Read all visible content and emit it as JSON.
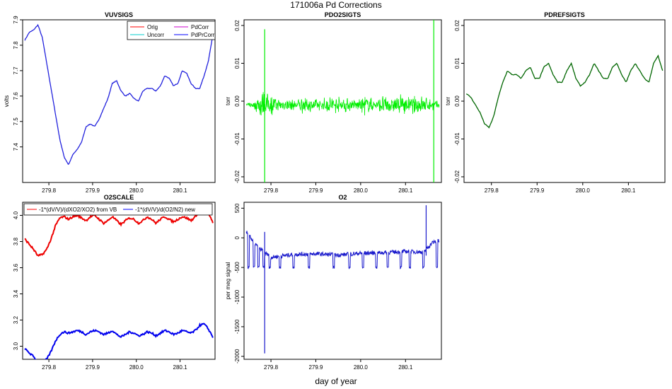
{
  "page": {
    "title": "171006a   Pd Corrections",
    "xlabel": "day of year"
  },
  "chart_data": [
    {
      "id": "vuvsigs",
      "type": "line",
      "title": "VUVSIGS",
      "ylabel": "volts",
      "xlim": [
        279.74,
        280.18
      ],
      "ylim": [
        7.26,
        7.9
      ],
      "xticks": [
        "279.8",
        "279.9",
        "280.0",
        "280.1"
      ],
      "xtick_values": [
        279.8,
        279.9,
        280.0,
        280.1
      ],
      "yticks": [
        "7.4",
        "7.5",
        "7.6",
        "7.7",
        "7.8",
        "7.9"
      ],
      "ytick_values": [
        7.4,
        7.5,
        7.6,
        7.7,
        7.8,
        7.9
      ],
      "legend": {
        "placement": "top-right",
        "entries": [
          {
            "name": "Orig",
            "color": "#ff0000"
          },
          {
            "name": "PdCorr",
            "color": "#cc00cc"
          },
          {
            "name": "Uncorr",
            "color": "#00cccc"
          },
          {
            "name": "PdPrCorr",
            "color": "#0000ff"
          }
        ]
      },
      "series": [
        {
          "name": "PdPrCorr",
          "color": "#2222dd",
          "x": [
            279.745,
            279.755,
            279.765,
            279.775,
            279.785,
            279.795,
            279.805,
            279.815,
            279.825,
            279.835,
            279.845,
            279.855,
            279.865,
            279.875,
            279.885,
            279.895,
            279.905,
            279.915,
            279.925,
            279.935,
            279.945,
            279.955,
            279.965,
            279.975,
            279.985,
            279.995,
            280.005,
            280.015,
            280.025,
            280.035,
            280.045,
            280.055,
            280.065,
            280.075,
            280.085,
            280.095,
            280.105,
            280.115,
            280.125,
            280.135,
            280.145,
            280.155,
            280.165,
            280.175
          ],
          "y": [
            7.82,
            7.85,
            7.86,
            7.88,
            7.83,
            7.73,
            7.63,
            7.53,
            7.43,
            7.36,
            7.33,
            7.37,
            7.39,
            7.42,
            7.48,
            7.49,
            7.48,
            7.51,
            7.55,
            7.59,
            7.65,
            7.66,
            7.62,
            7.6,
            7.61,
            7.59,
            7.58,
            7.62,
            7.63,
            7.63,
            7.62,
            7.64,
            7.68,
            7.67,
            7.64,
            7.65,
            7.7,
            7.69,
            7.65,
            7.63,
            7.63,
            7.68,
            7.74,
            7.84
          ]
        }
      ]
    },
    {
      "id": "pdo2sigts",
      "type": "line",
      "title": "PDO2SIGTS",
      "ylabel": "torr",
      "xlim": [
        279.74,
        280.18
      ],
      "ylim": [
        -0.0215,
        0.0215
      ],
      "xticks": [
        "279.8",
        "279.9",
        "280.0",
        "280.1"
      ],
      "xtick_values": [
        279.8,
        279.9,
        280.0,
        280.1
      ],
      "yticks": [
        "-0.02",
        "-0.01",
        "0.00",
        "0.01",
        "0.02"
      ],
      "ytick_values": [
        -0.02,
        -0.01,
        0.0,
        0.01,
        0.02
      ],
      "noise_profile": {
        "x": [
          279.745,
          279.76,
          279.775,
          279.785,
          279.795,
          279.81,
          279.83,
          279.85,
          279.87,
          279.89,
          279.91,
          279.93,
          279.95,
          279.97,
          279.99,
          280.01,
          280.03,
          280.05,
          280.07,
          280.09,
          280.11,
          280.13,
          280.15,
          280.165,
          280.175
        ],
        "amplitude": [
          0.0006,
          0.0008,
          0.0035,
          0.004,
          0.0035,
          0.002,
          0.002,
          0.0015,
          0.0025,
          0.002,
          0.0015,
          0.003,
          0.0025,
          0.002,
          0.0015,
          0.003,
          0.0018,
          0.003,
          0.002,
          0.0035,
          0.002,
          0.0035,
          0.002,
          0.0015,
          0.001
        ]
      },
      "spikes": [
        {
          "x": 279.786,
          "y": [
            -0.0215,
            0.019
          ]
        },
        {
          "x": 280.163,
          "y": [
            -0.0215,
            0.0215
          ]
        }
      ],
      "series": [
        {
          "name": "PDO2SIGTS",
          "color": "#00ee00"
        }
      ]
    },
    {
      "id": "pdrefsigts",
      "type": "line",
      "title": "PDREFSIGTS",
      "ylabel": "torr",
      "xlim": [
        279.74,
        280.18
      ],
      "ylim": [
        -0.0215,
        0.0215
      ],
      "xticks": [
        "279.8",
        "279.9",
        "280.0",
        "280.1"
      ],
      "xtick_values": [
        279.8,
        279.9,
        280.0,
        280.1
      ],
      "yticks": [
        "-0.02",
        "-0.01",
        "0.00",
        "0.01",
        "0.02"
      ],
      "ytick_values": [
        -0.02,
        -0.01,
        0.0,
        0.01,
        0.02
      ],
      "series": [
        {
          "name": "PDREFSIGTS",
          "color": "#006600",
          "x": [
            279.745,
            279.755,
            279.765,
            279.775,
            279.785,
            279.795,
            279.805,
            279.815,
            279.825,
            279.835,
            279.845,
            279.855,
            279.865,
            279.875,
            279.885,
            279.895,
            279.905,
            279.915,
            279.925,
            279.935,
            279.945,
            279.955,
            279.965,
            279.975,
            279.985,
            279.995,
            280.005,
            280.015,
            280.025,
            280.035,
            280.045,
            280.055,
            280.065,
            280.075,
            280.085,
            280.095,
            280.105,
            280.115,
            280.125,
            280.135,
            280.145,
            280.155,
            280.165,
            280.175
          ],
          "y": [
            0.002,
            0.001,
            -0.001,
            -0.003,
            -0.006,
            -0.007,
            -0.004,
            0.001,
            0.005,
            0.008,
            0.007,
            0.007,
            0.006,
            0.008,
            0.009,
            0.006,
            0.006,
            0.009,
            0.01,
            0.007,
            0.005,
            0.005,
            0.008,
            0.01,
            0.006,
            0.004,
            0.005,
            0.007,
            0.01,
            0.008,
            0.006,
            0.006,
            0.009,
            0.01,
            0.007,
            0.005,
            0.008,
            0.01,
            0.008,
            0.006,
            0.005,
            0.01,
            0.012,
            0.008
          ]
        }
      ]
    },
    {
      "id": "o2scale",
      "type": "line",
      "title": "O2SCALE",
      "ylabel": "",
      "xlim": [
        279.74,
        280.18
      ],
      "ylim": [
        2.9,
        4.1
      ],
      "xticks": [
        "279.8",
        "279.9",
        "280.0",
        "280.1"
      ],
      "xtick_values": [
        279.8,
        279.9,
        280.0,
        280.1
      ],
      "yticks": [
        "3.0",
        "3.2",
        "3.4",
        "3.6",
        "3.8",
        "4.0"
      ],
      "ytick_values": [
        3.0,
        3.2,
        3.4,
        3.6,
        3.8,
        4.0
      ],
      "legend": {
        "placement": "top",
        "entries": [
          {
            "name": "-1*(dV/V)/(dXO2/XO2) from VB",
            "color": "#ff0000"
          },
          {
            "name": "-1*(dV/V)/d(O2/N2) new",
            "color": "#0000ff"
          }
        ]
      },
      "series": [
        {
          "name": "-1*(dV/V)/(dXO2/XO2) from VB",
          "color": "#ee0000",
          "x": [
            279.745,
            279.755,
            279.765,
            279.775,
            279.785,
            279.795,
            279.805,
            279.815,
            279.825,
            279.835,
            279.845,
            279.855,
            279.865,
            279.875,
            279.885,
            279.895,
            279.905,
            279.915,
            279.925,
            279.935,
            279.945,
            279.955,
            279.965,
            279.975,
            279.985,
            279.995,
            280.005,
            280.015,
            280.025,
            280.035,
            280.045,
            280.055,
            280.065,
            280.075,
            280.085,
            280.095,
            280.105,
            280.115,
            280.125,
            280.135,
            280.145,
            280.155,
            280.165,
            280.175
          ],
          "y": [
            3.82,
            3.78,
            3.74,
            3.69,
            3.7,
            3.74,
            3.82,
            3.92,
            3.98,
            3.99,
            3.97,
            3.99,
            4.0,
            3.98,
            3.96,
            3.99,
            4.0,
            3.97,
            3.94,
            3.96,
            3.99,
            3.96,
            3.93,
            3.96,
            3.98,
            3.97,
            3.94,
            3.96,
            3.99,
            3.97,
            3.94,
            3.97,
            3.99,
            3.97,
            3.95,
            3.97,
            3.99,
            3.98,
            3.96,
            3.99,
            4.04,
            4.07,
            4.02,
            3.94
          ]
        },
        {
          "name": "-1*(dV/V)/d(O2/N2) new",
          "color": "#0000ee",
          "x": [
            279.745,
            279.755,
            279.765,
            279.775,
            279.785,
            279.795,
            279.805,
            279.815,
            279.825,
            279.835,
            279.845,
            279.855,
            279.865,
            279.875,
            279.885,
            279.895,
            279.905,
            279.915,
            279.925,
            279.935,
            279.945,
            279.955,
            279.965,
            279.975,
            279.985,
            279.995,
            280.005,
            280.015,
            280.025,
            280.035,
            280.045,
            280.055,
            280.065,
            280.075,
            280.085,
            280.095,
            280.105,
            280.115,
            280.125,
            280.135,
            280.145,
            280.155,
            280.165,
            280.175
          ],
          "y": [
            2.98,
            2.95,
            2.92,
            2.88,
            2.88,
            2.9,
            2.96,
            3.04,
            3.09,
            3.11,
            3.1,
            3.11,
            3.12,
            3.11,
            3.09,
            3.11,
            3.12,
            3.11,
            3.09,
            3.1,
            3.12,
            3.09,
            3.07,
            3.09,
            3.11,
            3.1,
            3.08,
            3.09,
            3.11,
            3.1,
            3.08,
            3.1,
            3.12,
            3.11,
            3.09,
            3.1,
            3.12,
            3.11,
            3.1,
            3.12,
            3.16,
            3.17,
            3.13,
            3.07
          ]
        }
      ]
    },
    {
      "id": "o2",
      "type": "line",
      "title": "O2",
      "ylabel": "per meg signal",
      "xlim": [
        279.74,
        280.18
      ],
      "ylim": [
        -2050,
        600
      ],
      "xticks": [
        "279.8",
        "279.9",
        "280.0",
        "280.1"
      ],
      "xtick_values": [
        279.8,
        279.9,
        280.0,
        280.1
      ],
      "yticks": [
        "-2000",
        "-1500",
        "-1000",
        "-500",
        "0",
        "500"
      ],
      "ytick_values": [
        -2000,
        -1500,
        -1000,
        -500,
        0,
        500
      ],
      "dips": [
        279.75,
        279.762,
        279.772,
        279.784,
        279.797,
        279.82,
        279.85,
        279.885,
        279.94,
        279.975,
        280.005,
        280.035,
        280.06,
        280.09,
        280.11,
        280.14,
        280.17
      ],
      "spikes": [
        {
          "x": 279.786,
          "y": [
            -1950,
            100
          ]
        },
        {
          "x": 280.146,
          "y": [
            -300,
            550
          ]
        }
      ],
      "series": [
        {
          "name": "O2",
          "color": "#1a1acc",
          "baseline": [
            [
              279.745,
              100
            ],
            [
              279.77,
              -150
            ],
            [
              279.8,
              -330
            ],
            [
              279.85,
              -280
            ],
            [
              279.9,
              -270
            ],
            [
              279.95,
              -290
            ],
            [
              280.0,
              -260
            ],
            [
              280.05,
              -250
            ],
            [
              280.1,
              -230
            ],
            [
              280.14,
              -240
            ],
            [
              280.16,
              -80
            ],
            [
              280.175,
              -50
            ]
          ]
        }
      ]
    }
  ]
}
